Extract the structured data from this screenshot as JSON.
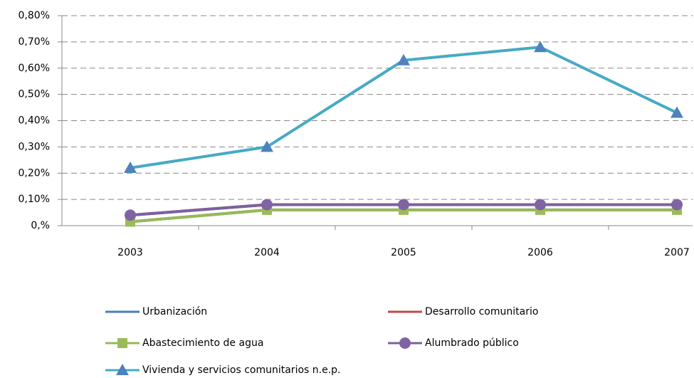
{
  "chart_data": {
    "type": "line",
    "categories": [
      "2003",
      "2004",
      "2005",
      "2006",
      "2007"
    ],
    "ylim": [
      0,
      0.8
    ],
    "yticks": [
      {
        "value": 0,
        "label": "0,%"
      },
      {
        "value": 0.1,
        "label": "0,10%"
      },
      {
        "value": 0.2,
        "label": "0,20%"
      },
      {
        "value": 0.3,
        "label": "0,30%"
      },
      {
        "value": 0.4,
        "label": "0,40%"
      },
      {
        "value": 0.5,
        "label": "0,50%"
      },
      {
        "value": 0.6,
        "label": "0,60%"
      },
      {
        "value": 0.7,
        "label": "0,70%"
      },
      {
        "value": 0.8,
        "label": "0,80%"
      }
    ],
    "grid": true,
    "legend": "bottom",
    "series": [
      {
        "name": "Urbanización",
        "color": "#4a7ebb",
        "marker": null,
        "values": [
          0.015,
          0.06,
          0.06,
          0.06,
          0.06
        ]
      },
      {
        "name": "Desarrollo comunitario",
        "color": "#be4b48",
        "marker": null,
        "values": [
          0.04,
          0.08,
          0.08,
          0.08,
          0.08
        ]
      },
      {
        "name": "Abastecimiento de agua",
        "color": "#98b954",
        "marker": "square",
        "marker_color": "#9bbb59",
        "values": [
          0.015,
          0.06,
          0.06,
          0.06,
          0.06
        ]
      },
      {
        "name": "Alumbrado público",
        "color": "#7d60a0",
        "marker": "circle",
        "marker_color": "#8064a2",
        "values": [
          0.04,
          0.08,
          0.08,
          0.08,
          0.08
        ]
      },
      {
        "name": "Vivienda y servicios comunitarios n.e.p.",
        "color": "#46aac5",
        "marker": "triangle",
        "marker_color": "#4f81bd",
        "values": [
          0.22,
          0.3,
          0.63,
          0.68,
          0.43
        ]
      }
    ]
  }
}
